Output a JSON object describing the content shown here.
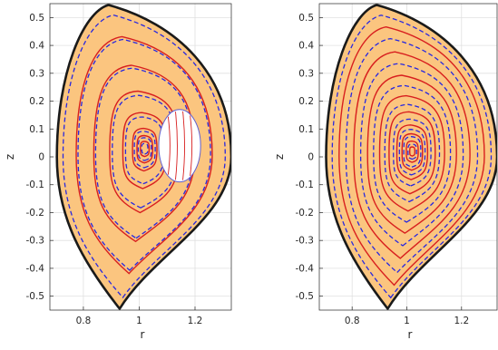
{
  "chart_data": [
    {
      "type": "contour",
      "xlabel": "r",
      "ylabel": "z",
      "xlim": [
        0.68,
        1.33
      ],
      "ylim": [
        -0.55,
        0.55
      ],
      "xticks": [
        0.8,
        1.0,
        1.2
      ],
      "xtick_labels": [
        "0.8",
        "1",
        "1.2"
      ],
      "yticks": [
        0.5,
        0.4,
        0.3,
        0.2,
        0.1,
        0.0,
        -0.1,
        -0.2,
        -0.3,
        -0.4,
        -0.5
      ],
      "ytick_labels": [
        "0.5",
        "0.4",
        "0.3",
        "0.2",
        "0.1",
        "0",
        "-0.1",
        "-0.2",
        "-0.3",
        "-0.4",
        "-0.5"
      ],
      "grid": true,
      "boundary": {
        "r_min": 0.705,
        "r_max": 1.33,
        "z_top": 0.545,
        "z_bottom": -0.545,
        "r_at_top": 0.89,
        "r_at_bottom": 0.93
      },
      "axis_center": {
        "r": 1.02,
        "z": 0.03
      },
      "solid_contour_levels": [
        0.05,
        0.09,
        0.14,
        0.25,
        0.4,
        0.58,
        0.78
      ],
      "dashed_contour_levels": [
        0.035,
        0.075,
        0.12,
        0.22,
        0.37,
        0.56,
        0.76,
        0.93
      ],
      "hole": {
        "r_center": 1.145,
        "z_center": 0.04,
        "r_half_width": 0.075,
        "z_half_height": 0.13
      },
      "colors": {
        "fill": "#fbc57f",
        "boundary": "#1a1a1a",
        "solid_contour": "#d81f1f",
        "dashed_contour": "#2727e0",
        "hole_edge": "#6060d0",
        "grid": "#e0e0e0"
      }
    },
    {
      "type": "contour",
      "xlabel": "r",
      "ylabel": "z",
      "xlim": [
        0.68,
        1.33
      ],
      "ylim": [
        -0.55,
        0.55
      ],
      "xticks": [
        0.8,
        1.0,
        1.2
      ],
      "xtick_labels": [
        "0.8",
        "1",
        "1.2"
      ],
      "yticks": [
        0.5,
        0.4,
        0.3,
        0.2,
        0.1,
        0.0,
        -0.1,
        -0.2,
        -0.3,
        -0.4,
        -0.5
      ],
      "ytick_labels": [
        "0.5",
        "0.4",
        "0.3",
        "0.2",
        "0.1",
        "0",
        "-0.1",
        "-0.2",
        "-0.3",
        "-0.4",
        "-0.5"
      ],
      "grid": true,
      "boundary": {
        "r_min": 0.705,
        "r_max": 1.33,
        "z_top": 0.545,
        "z_bottom": -0.545,
        "r_at_top": 0.89,
        "r_at_bottom": 0.93
      },
      "axis_center": {
        "r": 1.02,
        "z": 0.02
      },
      "solid_contour_levels": [
        0.03,
        0.07,
        0.12,
        0.18,
        0.27,
        0.38,
        0.52,
        0.68,
        0.85
      ],
      "dashed_contour_levels": [
        0.05,
        0.1,
        0.15,
        0.22,
        0.32,
        0.45,
        0.6,
        0.77,
        0.93
      ],
      "colors": {
        "fill": "#fbc57f",
        "boundary": "#1a1a1a",
        "solid_contour": "#d81f1f",
        "dashed_contour": "#2727e0",
        "grid": "#e0e0e0"
      }
    }
  ]
}
